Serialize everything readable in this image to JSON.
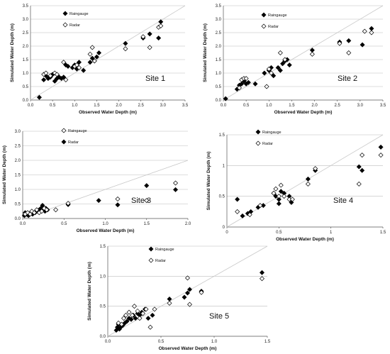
{
  "chart_data": [
    {
      "type": "scatter",
      "site_label": "Site 1",
      "xlabel": "Observed Water Depth (m)",
      "ylabel": "Simulated Water Depth (m)",
      "xlim": [
        0,
        3.5
      ],
      "ylim": [
        0,
        3.5
      ],
      "xticks": [
        "0.0",
        "0.5",
        "1.0",
        "1.5",
        "2.0",
        "2.5",
        "3.0",
        "3.5"
      ],
      "yticks": [
        "0.0",
        "0.5",
        "1.0",
        "1.5",
        "2.0",
        "2.5",
        "3.0",
        "3.5"
      ],
      "grid": "horizontal",
      "legend_position": "top-left",
      "reference_line": "1:1",
      "series": [
        {
          "name": "Raingauge",
          "marker": "filled-diamond",
          "points": [
            [
              0.2,
              0.1
            ],
            [
              0.3,
              0.75
            ],
            [
              0.35,
              0.9
            ],
            [
              0.4,
              0.8
            ],
            [
              0.45,
              0.85
            ],
            [
              0.5,
              0.95
            ],
            [
              0.55,
              0.7
            ],
            [
              0.6,
              0.8
            ],
            [
              0.65,
              0.85
            ],
            [
              0.7,
              0.8
            ],
            [
              0.75,
              0.85
            ],
            [
              0.8,
              1.3
            ],
            [
              0.85,
              1.25
            ],
            [
              0.95,
              1.2
            ],
            [
              1.0,
              1.3
            ],
            [
              1.05,
              1.15
            ],
            [
              1.1,
              1.4
            ],
            [
              1.2,
              1.1
            ],
            [
              1.35,
              1.4
            ],
            [
              1.4,
              1.55
            ],
            [
              1.45,
              1.45
            ],
            [
              1.5,
              1.6
            ],
            [
              1.55,
              1.75
            ],
            [
              2.15,
              2.1
            ],
            [
              2.55,
              2.3
            ],
            [
              2.7,
              2.45
            ],
            [
              2.9,
              2.3
            ],
            [
              2.95,
              2.9
            ]
          ]
        },
        {
          "name": "Radar",
          "marker": "open-diamond",
          "points": [
            [
              0.3,
              0.95
            ],
            [
              0.35,
              1.0
            ],
            [
              0.45,
              0.9
            ],
            [
              0.55,
              1.0
            ],
            [
              0.6,
              0.95
            ],
            [
              0.75,
              1.4
            ],
            [
              0.8,
              0.75
            ],
            [
              1.0,
              1.25
            ],
            [
              1.05,
              1.3
            ],
            [
              1.1,
              1.2
            ],
            [
              1.35,
              1.7
            ],
            [
              1.4,
              1.95
            ],
            [
              1.45,
              1.45
            ],
            [
              2.15,
              1.9
            ],
            [
              2.55,
              2.35
            ],
            [
              2.7,
              1.95
            ],
            [
              2.9,
              2.7
            ],
            [
              2.95,
              2.75
            ]
          ]
        }
      ]
    },
    {
      "type": "scatter",
      "site_label": "Site 2",
      "xlabel": "Observed Water Depth (m)",
      "ylabel": "Simulated Water Depth (m)",
      "xlim": [
        0,
        3.5
      ],
      "ylim": [
        0,
        3.5
      ],
      "xticks": [
        "0.0",
        "0.5",
        "1.0",
        "1.5",
        "2.0",
        "2.5",
        "3.0",
        "3.5"
      ],
      "yticks": [
        "0.0",
        "0.5",
        "1.0",
        "1.5",
        "2.0",
        "2.5",
        "3.0",
        "3.5"
      ],
      "grid": "horizontal",
      "legend_position": "top-left",
      "reference_line": "1:1",
      "series": [
        {
          "name": "Raingauge",
          "marker": "filled-diamond",
          "points": [
            [
              0.05,
              0.05
            ],
            [
              0.3,
              0.4
            ],
            [
              0.35,
              0.55
            ],
            [
              0.4,
              0.6
            ],
            [
              0.45,
              0.7
            ],
            [
              0.5,
              0.6
            ],
            [
              0.55,
              0.65
            ],
            [
              0.7,
              0.6
            ],
            [
              0.9,
              1.0
            ],
            [
              1.0,
              1.1
            ],
            [
              1.05,
              1.2
            ],
            [
              1.1,
              0.9
            ],
            [
              1.2,
              1.2
            ],
            [
              1.25,
              1.1
            ],
            [
              1.3,
              1.35
            ],
            [
              1.35,
              1.45
            ],
            [
              1.4,
              1.5
            ],
            [
              1.45,
              1.3
            ],
            [
              1.95,
              1.85
            ],
            [
              2.55,
              2.15
            ],
            [
              2.75,
              2.2
            ],
            [
              3.05,
              2.05
            ],
            [
              3.25,
              2.65
            ]
          ]
        },
        {
          "name": "Radar",
          "marker": "open-diamond",
          "points": [
            [
              0.35,
              0.45
            ],
            [
              0.4,
              0.75
            ],
            [
              0.45,
              0.8
            ],
            [
              0.5,
              0.8
            ],
            [
              0.95,
              0.5
            ],
            [
              1.0,
              1.15
            ],
            [
              1.05,
              1.0
            ],
            [
              1.25,
              1.75
            ],
            [
              1.35,
              1.5
            ],
            [
              1.95,
              1.7
            ],
            [
              2.55,
              2.1
            ],
            [
              2.75,
              1.75
            ],
            [
              3.1,
              2.55
            ],
            [
              3.25,
              2.5
            ]
          ]
        }
      ]
    },
    {
      "type": "scatter",
      "site_label": "Site 3",
      "xlabel": "Observed Water Depth (m)",
      "ylabel": "Simulated Water Depth (m)",
      "xlim": [
        0,
        2.0
      ],
      "ylim": [
        0,
        3.0
      ],
      "xticks": [
        "0.0",
        "0.5",
        "1.0",
        "1.5",
        "2.0"
      ],
      "yticks": [
        "0.0",
        "0.5",
        "1.0",
        "1.5",
        "2.0",
        "2.5",
        "3.0"
      ],
      "grid": "horizontal",
      "legend_position": "top-center",
      "reference_line": "1:1",
      "legend_order": [
        "Raingauge",
        "Radar"
      ],
      "legend_markers": [
        "open-diamond",
        "filled-diamond"
      ],
      "series": [
        {
          "name": "Raingauge",
          "marker": "filled-diamond",
          "points": [
            [
              0.02,
              0.1
            ],
            [
              0.03,
              0.2
            ],
            [
              0.05,
              0.15
            ],
            [
              0.07,
              0.1
            ],
            [
              0.08,
              0.15
            ],
            [
              0.1,
              0.2
            ],
            [
              0.12,
              0.15
            ],
            [
              0.15,
              0.2
            ],
            [
              0.18,
              0.25
            ],
            [
              0.2,
              0.3
            ],
            [
              0.22,
              0.35
            ],
            [
              0.24,
              0.45
            ],
            [
              0.25,
              0.3
            ],
            [
              0.27,
              0.25
            ],
            [
              0.28,
              0.35
            ],
            [
              0.3,
              0.3
            ],
            [
              0.55,
              0.48
            ],
            [
              0.92,
              0.62
            ],
            [
              1.15,
              0.47
            ],
            [
              1.5,
              1.13
            ],
            [
              1.85,
              0.99
            ]
          ]
        },
        {
          "name": "Radar",
          "marker": "open-diamond",
          "points": [
            [
              0.03,
              0.15
            ],
            [
              0.06,
              0.2
            ],
            [
              0.09,
              0.15
            ],
            [
              0.11,
              0.25
            ],
            [
              0.14,
              0.2
            ],
            [
              0.17,
              0.3
            ],
            [
              0.2,
              0.2
            ],
            [
              0.23,
              0.25
            ],
            [
              0.26,
              0.35
            ],
            [
              0.29,
              0.3
            ],
            [
              0.4,
              0.3
            ],
            [
              0.55,
              0.52
            ],
            [
              1.15,
              0.67
            ],
            [
              1.5,
              0.62
            ],
            [
              1.85,
              1.22
            ]
          ]
        }
      ]
    },
    {
      "type": "scatter",
      "site_label": "Site 4",
      "xlabel": "Observed Water Depth (m)",
      "ylabel": "Simulated Water Depth (m)",
      "xlim": [
        0,
        1.5
      ],
      "ylim": [
        0,
        1.5
      ],
      "xticks": [
        "0",
        "0.5",
        "1",
        "1.5"
      ],
      "yticks": [
        "0",
        "0.5",
        "1",
        "1.5"
      ],
      "grid": "horizontal",
      "legend_position": "top-left",
      "reference_line": "1:1",
      "series": [
        {
          "name": "Raingauge",
          "marker": "filled-diamond",
          "points": [
            [
              0.1,
              0.45
            ],
            [
              0.15,
              0.18
            ],
            [
              0.2,
              0.22
            ],
            [
              0.23,
              0.25
            ],
            [
              0.3,
              0.32
            ],
            [
              0.35,
              0.35
            ],
            [
              0.45,
              0.55
            ],
            [
              0.47,
              0.5
            ],
            [
              0.5,
              0.45
            ],
            [
              0.5,
              0.38
            ],
            [
              0.52,
              0.58
            ],
            [
              0.55,
              0.55
            ],
            [
              0.6,
              0.5
            ],
            [
              0.62,
              0.4
            ],
            [
              0.78,
              0.78
            ],
            [
              0.85,
              0.92
            ],
            [
              1.27,
              0.98
            ],
            [
              1.3,
              0.92
            ],
            [
              1.48,
              1.3
            ]
          ]
        },
        {
          "name": "Radar",
          "marker": "open-diamond",
          "points": [
            [
              0.1,
              0.25
            ],
            [
              0.22,
              0.2
            ],
            [
              0.32,
              0.35
            ],
            [
              0.45,
              0.55
            ],
            [
              0.47,
              0.62
            ],
            [
              0.5,
              0.5
            ],
            [
              0.52,
              0.68
            ],
            [
              0.55,
              0.5
            ],
            [
              0.6,
              0.45
            ],
            [
              0.63,
              0.45
            ],
            [
              0.78,
              0.7
            ],
            [
              0.85,
              0.95
            ],
            [
              1.27,
              0.7
            ],
            [
              1.3,
              1.17
            ],
            [
              1.48,
              1.17
            ]
          ]
        }
      ]
    },
    {
      "type": "scatter",
      "site_label": "Site 5",
      "xlabel": "Observed Water Depth (m)",
      "ylabel": "Simulated Water Depth (m)",
      "xlim": [
        0,
        1.5
      ],
      "ylim": [
        0,
        1.5
      ],
      "xticks": [
        "0.0",
        "0.5",
        "1.0",
        "1.5"
      ],
      "yticks": [
        "0.0",
        "0.5",
        "1.0",
        "1.5"
      ],
      "grid": "horizontal",
      "legend_position": "top-left",
      "reference_line": "1:1",
      "series": [
        {
          "name": "Raingauge",
          "marker": "filled-diamond",
          "points": [
            [
              0.08,
              0.1
            ],
            [
              0.09,
              0.15
            ],
            [
              0.1,
              0.2
            ],
            [
              0.11,
              0.12
            ],
            [
              0.12,
              0.15
            ],
            [
              0.14,
              0.18
            ],
            [
              0.16,
              0.22
            ],
            [
              0.18,
              0.25
            ],
            [
              0.2,
              0.3
            ],
            [
              0.22,
              0.28
            ],
            [
              0.24,
              0.35
            ],
            [
              0.26,
              0.3
            ],
            [
              0.28,
              0.38
            ],
            [
              0.3,
              0.35
            ],
            [
              0.32,
              0.4
            ],
            [
              0.35,
              0.45
            ],
            [
              0.38,
              0.3
            ],
            [
              0.42,
              0.35
            ],
            [
              0.58,
              0.62
            ],
            [
              0.72,
              0.65
            ],
            [
              0.75,
              0.72
            ],
            [
              0.77,
              0.78
            ],
            [
              0.88,
              0.75
            ],
            [
              1.45,
              1.06
            ]
          ]
        },
        {
          "name": "Radar",
          "marker": "open-diamond",
          "points": [
            [
              0.1,
              0.22
            ],
            [
              0.13,
              0.2
            ],
            [
              0.15,
              0.3
            ],
            [
              0.17,
              0.35
            ],
            [
              0.2,
              0.4
            ],
            [
              0.23,
              0.35
            ],
            [
              0.25,
              0.5
            ],
            [
              0.28,
              0.42
            ],
            [
              0.3,
              0.3
            ],
            [
              0.33,
              0.38
            ],
            [
              0.36,
              0.45
            ],
            [
              0.4,
              0.15
            ],
            [
              0.44,
              0.45
            ],
            [
              0.58,
              0.55
            ],
            [
              0.75,
              0.97
            ],
            [
              0.77,
              0.53
            ],
            [
              0.88,
              0.73
            ],
            [
              1.45,
              0.96
            ]
          ]
        }
      ]
    }
  ]
}
